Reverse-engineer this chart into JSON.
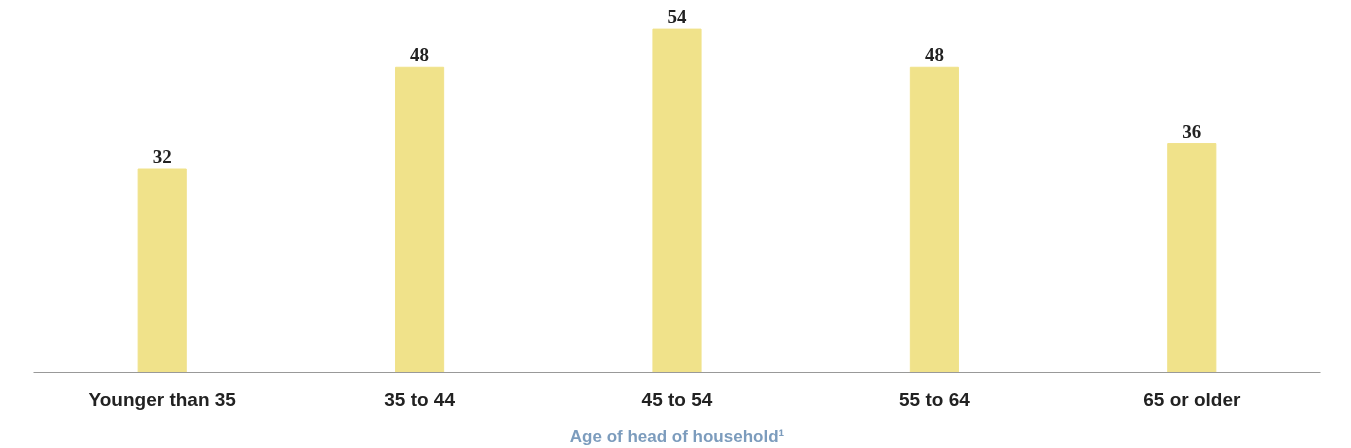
{
  "chart_data": {
    "type": "bar",
    "xlabel": "Age of head of household¹",
    "categories": [
      "Younger than 35",
      "35 to 44",
      "45 to 54",
      "55 to 64",
      "65 or older"
    ],
    "values": [
      32,
      48,
      54,
      48,
      36
    ],
    "color": "#f0e28a",
    "data_labels": true
  }
}
